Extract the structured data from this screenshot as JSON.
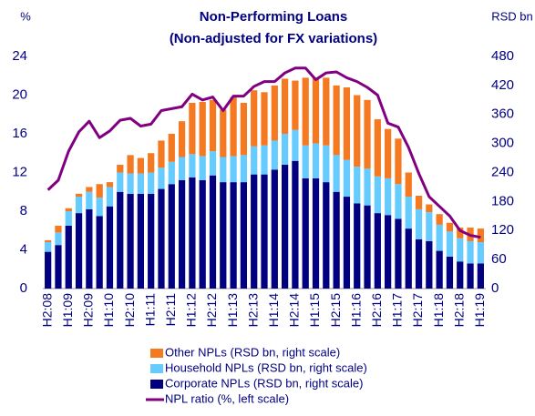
{
  "chart_data": {
    "type": "bar_line",
    "title": "Non-Performing Loans",
    "subtitle": "(Non-adjusted for FX variations)",
    "y_label": "%",
    "y2_label": "RSD bn",
    "categories": [
      "H2:08",
      null,
      "H1:09",
      null,
      "H2:09",
      null,
      "H1:10",
      null,
      "H2:10",
      null,
      "H1:11",
      null,
      "H2:11",
      null,
      "H1:12",
      null,
      "H2:12",
      null,
      "H1:13",
      null,
      "H2:13",
      null,
      "H1:14",
      null,
      "H2:14",
      null,
      "H1:15",
      null,
      "H2:15",
      null,
      "H1:16",
      null,
      "H2:16",
      null,
      "H1:17",
      null,
      "H2:17",
      null,
      "H1:18",
      null,
      "H2:18",
      null,
      "H1:19"
    ],
    "ylim": [
      0,
      24
    ],
    "yticks": [
      0,
      4,
      8,
      12,
      16,
      20,
      24
    ],
    "y2lim": [
      0,
      480
    ],
    "y2ticks": [
      0,
      60,
      120,
      180,
      240,
      300,
      360,
      420,
      480
    ],
    "series": [
      {
        "name": "Other NPLs (RSD bn, right scale)",
        "color": "#f47920",
        "axis": "y2",
        "values": [
          4,
          14,
          6,
          6,
          10,
          28,
          10,
          16,
          38,
          32,
          40,
          56,
          58,
          74,
          106,
          112,
          106,
          98,
          122,
          108,
          116,
          110,
          114,
          114,
          102,
          140,
          136,
          140,
          144,
          150,
          148,
          142,
          118,
          102,
          94,
          50,
          28,
          16,
          22,
          18,
          22,
          28,
          28
        ]
      },
      {
        "name": "Household NPLs (RSD bn, right scale)",
        "color": "#66ccff",
        "axis": "y2",
        "values": [
          20,
          26,
          30,
          34,
          36,
          38,
          40,
          40,
          42,
          42,
          44,
          44,
          46,
          48,
          48,
          50,
          50,
          52,
          54,
          56,
          58,
          60,
          60,
          64,
          64,
          68,
          72,
          76,
          76,
          76,
          76,
          76,
          76,
          76,
          72,
          66,
          62,
          60,
          54,
          52,
          48,
          46,
          44
        ]
      },
      {
        "name": "Corporate NPLs (RSD bn, right scale)",
        "color": "#000080",
        "axis": "y2",
        "values": [
          76,
          90,
          130,
          156,
          164,
          150,
          170,
          200,
          196,
          196,
          196,
          206,
          216,
          224,
          230,
          224,
          234,
          220,
          220,
          220,
          236,
          236,
          246,
          256,
          264,
          228,
          228,
          220,
          200,
          190,
          176,
          172,
          156,
          152,
          144,
          124,
          102,
          98,
          78,
          66,
          56,
          52,
          52
        ]
      },
      {
        "name": "NPL ratio (%, left scale)",
        "color": "#800080",
        "axis": "y",
        "values": [
          10.2,
          11.2,
          14.2,
          16.2,
          17.3,
          15.6,
          16.3,
          17.4,
          17.6,
          16.8,
          17,
          18.4,
          18.6,
          18.8,
          20.1,
          19.5,
          19.8,
          18.4,
          19.9,
          19.9,
          20.9,
          21.4,
          21.4,
          22.3,
          22.8,
          22.8,
          21.6,
          22.3,
          22.4,
          21.8,
          21.4,
          20.8,
          20,
          17.1,
          16.7,
          14.6,
          11.9,
          9.5,
          8.5,
          7.5,
          6,
          5.5,
          5.3
        ]
      }
    ]
  }
}
